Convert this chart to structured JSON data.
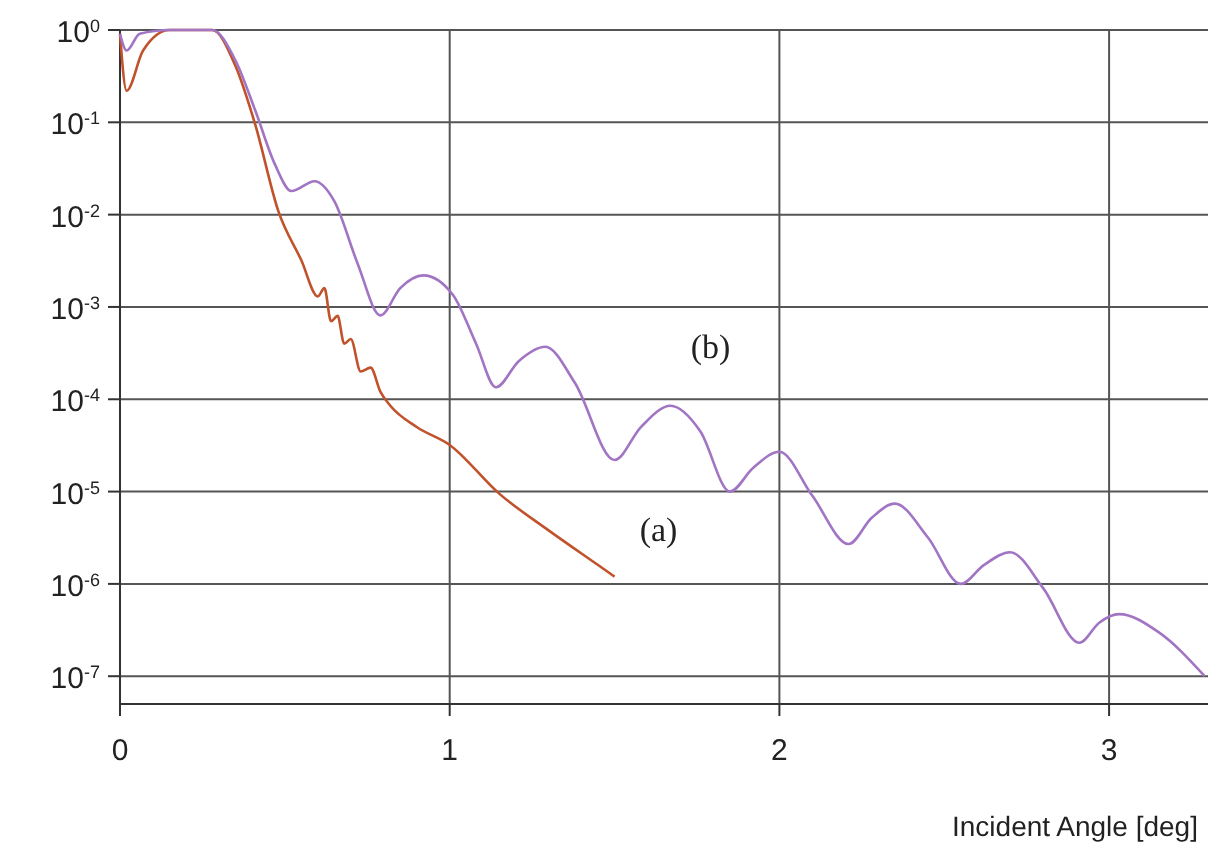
{
  "chart_data": {
    "type": "line",
    "xlabel": "Incident Angle [deg]",
    "log": "y",
    "grid": true,
    "line_style": "solid",
    "marker": "none",
    "xlim": [
      0,
      3.3
    ],
    "xticks": [
      0,
      1,
      2,
      3
    ],
    "ylim": [
      5e-08,
      1
    ],
    "yticks": [
      {
        "value": 1,
        "label": "10$^{0}$"
      },
      {
        "value": 0.1,
        "label": "10$^{-1}$"
      },
      {
        "value": 0.01,
        "label": "10$^{-2}$"
      },
      {
        "value": 0.001,
        "label": "10$^{-3}$"
      },
      {
        "value": 0.0001,
        "label": "10$^{-4}$"
      },
      {
        "value": 1e-05,
        "label": "10$^{-5}$"
      },
      {
        "value": 1e-06,
        "label": "10$^{-6}$"
      },
      {
        "value": 1e-07,
        "label": "10$^{-7}$"
      }
    ],
    "series": [
      {
        "name": "(a)",
        "color": "#c0522c",
        "x": [
          0,
          0.02,
          0.07,
          0.15,
          0.28,
          0.35,
          0.41,
          0.48,
          0.55,
          0.6,
          0.62,
          0.64,
          0.66,
          0.68,
          0.7,
          0.73,
          0.76,
          0.79,
          0.82,
          0.9,
          1.0,
          1.15,
          1.3,
          1.45,
          1.5
        ],
        "values": [
          0.91,
          0.22,
          0.6,
          1,
          1,
          0.41,
          0.095,
          0.011,
          0.0032,
          0.0013,
          0.0016,
          0.0007,
          0.0008,
          0.0004,
          0.00045,
          0.0002,
          0.00022,
          0.00012,
          8.5e-05,
          5e-05,
          3.2e-05,
          9.5e-06,
          3.8e-06,
          1.6e-06,
          1.2e-06
        ]
      },
      {
        "name": "(b)",
        "color": "#a274c4",
        "x": [
          0,
          0.02,
          0.06,
          0.15,
          0.28,
          0.35,
          0.41,
          0.47,
          0.52,
          0.59,
          0.65,
          0.72,
          0.79,
          0.85,
          0.92,
          1.01,
          1.08,
          1.14,
          1.21,
          1.29,
          1.38,
          1.5,
          1.58,
          1.67,
          1.76,
          1.85,
          1.92,
          2.0,
          2.1,
          2.21,
          2.28,
          2.35,
          2.45,
          2.55,
          2.62,
          2.7,
          2.8,
          2.91,
          2.97,
          3.03,
          3.15,
          3.29
        ],
        "values": [
          0.91,
          0.6,
          0.91,
          1,
          1,
          0.47,
          0.135,
          0.035,
          0.018,
          0.023,
          0.014,
          0.003,
          0.00081,
          0.0016,
          0.0022,
          0.00135,
          0.0004,
          0.000135,
          0.00026,
          0.00037,
          0.00015,
          2.2e-05,
          5e-05,
          8.5e-05,
          4.5e-05,
          1e-05,
          1.8e-05,
          2.7e-05,
          9e-06,
          2.7e-06,
          5.2e-06,
          7.4e-06,
          3.2e-06,
          1e-06,
          1.6e-06,
          2.2e-06,
          9e-07,
          2.3e-07,
          3.8e-07,
          4.7e-07,
          3e-07,
          1e-07
        ]
      }
    ]
  }
}
